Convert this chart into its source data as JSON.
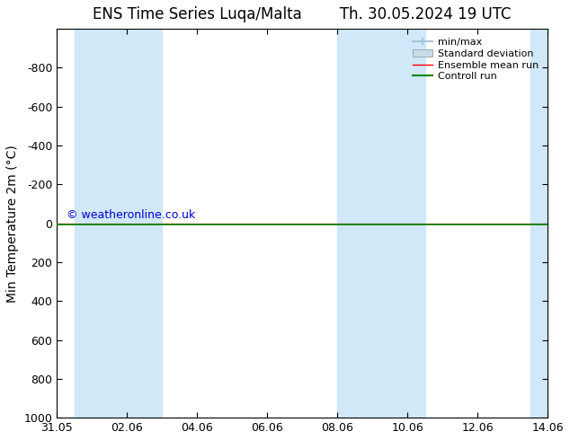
{
  "title_left": "ENS Time Series Luqa/Malta",
  "title_right": "Th. 30.05.2024 19 UTC",
  "ylabel": "Min Temperature 2m (°C)",
  "watermark": "© weatheronline.co.uk",
  "ylim_bottom": 1000,
  "ylim_top": -1000,
  "yticks": [
    -800,
    -600,
    -400,
    -200,
    0,
    200,
    400,
    600,
    800,
    1000
  ],
  "xlim_start": 0,
  "xlim_end": 14,
  "xtick_positions": [
    0,
    2,
    4,
    6,
    8,
    10,
    12,
    14
  ],
  "xtick_labels": [
    "31.05",
    "02.06",
    "04.06",
    "06.06",
    "08.06",
    "10.06",
    "12.06",
    "14.06"
  ],
  "shaded_bands": [
    [
      0.5,
      1.5
    ],
    [
      1.5,
      3.0
    ],
    [
      8.0,
      9.0
    ],
    [
      9.0,
      10.5
    ],
    [
      13.5,
      14.0
    ]
  ],
  "shade_color": "#d0e8f8",
  "ensemble_mean_color": "#ff0000",
  "control_run_color": "#008800",
  "background_color": "#ffffff",
  "legend_entries": [
    "min/max",
    "Standard deviation",
    "Ensemble mean run",
    "Controll run"
  ],
  "minmax_color": "#a8c8dc",
  "stddev_color": "#c8dce8",
  "title_fontsize": 12,
  "axis_fontsize": 10,
  "tick_fontsize": 9,
  "watermark_color": "#0000cc"
}
